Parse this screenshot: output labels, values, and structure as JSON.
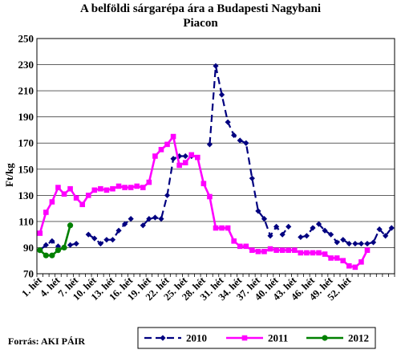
{
  "chart_data": {
    "type": "line",
    "title": "A belföldi sárgarépa ára a Budapesti Nagybani Piacon",
    "title_lines": [
      "A belföldi sárgarépa ára a Budapesti Nagybani",
      "Piacon"
    ],
    "ylabel": "Ft/kg",
    "xlabel": "",
    "ylim": [
      70,
      250
    ],
    "yticks": [
      70,
      90,
      110,
      130,
      150,
      170,
      190,
      210,
      230,
      250
    ],
    "x_tick_labels": [
      "1. hét",
      "4. hét",
      "7. hét",
      "10. hét",
      "13. hét",
      "16. hét",
      "19. hét",
      "22. hét",
      "25. hét",
      "28. hét",
      "31. hét",
      "34. hét",
      "37. hét",
      "40. hét",
      "43. hét",
      "46. hét",
      "49. hét",
      "52. hét"
    ],
    "x_tick_weeks": [
      1,
      4,
      7,
      10,
      13,
      16,
      19,
      22,
      25,
      28,
      31,
      34,
      37,
      40,
      43,
      46,
      49,
      52
    ],
    "grid": "horizontal",
    "legend_position": "bottom",
    "series": [
      {
        "name": "2010",
        "color": "#000080",
        "marker": "diamond",
        "line": "dashed",
        "values": [
          88,
          92,
          95,
          91,
          null,
          92,
          93,
          null,
          100,
          97,
          93,
          96,
          96,
          103,
          108,
          112,
          null,
          107,
          112,
          113,
          112,
          130,
          158,
          160,
          160,
          160,
          null,
          null,
          169,
          229,
          207,
          186,
          176,
          172,
          170,
          143,
          118,
          112,
          99,
          106,
          100,
          106,
          null,
          98,
          99,
          105,
          108,
          103,
          100,
          94,
          96,
          93,
          93,
          93,
          93,
          94,
          104,
          99,
          105
        ]
      },
      {
        "name": "2011",
        "color": "#ff00ff",
        "marker": "square",
        "line": "solid",
        "values": [
          101,
          117,
          125,
          136,
          131,
          135,
          128,
          123,
          130,
          134,
          135,
          134,
          135,
          137,
          136,
          136,
          137,
          136,
          140,
          160,
          165,
          169,
          175,
          153,
          155,
          161,
          159,
          139,
          129,
          105,
          105,
          105,
          95,
          91,
          91,
          88,
          87,
          87,
          89,
          88,
          88,
          88,
          88,
          86,
          86,
          86,
          86,
          85,
          82,
          82,
          80,
          76,
          75,
          79,
          88
        ]
      },
      {
        "name": "2012",
        "color": "#008000",
        "marker": "circle",
        "line": "solid",
        "values": [
          88,
          84,
          84,
          88,
          90,
          107
        ]
      }
    ]
  },
  "source": "Forrás: AKI PÁIR"
}
